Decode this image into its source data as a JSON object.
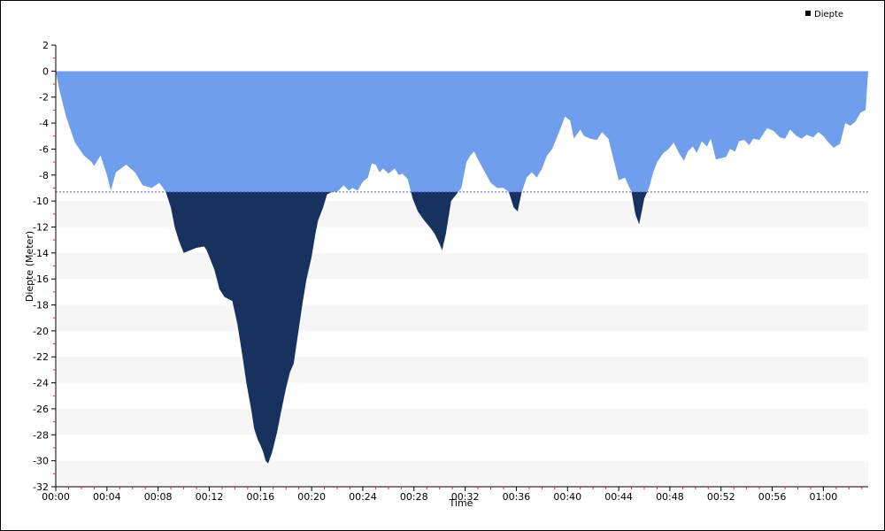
{
  "chart_data": {
    "type": "area",
    "xlabel": "Time",
    "ylabel": "Diepte (Meter)",
    "legend": {
      "label": "Diepte",
      "placement": "top-right"
    },
    "xlim": [
      0,
      63.5
    ],
    "ylim": [
      -32,
      2
    ],
    "x_unit": "minutes",
    "reference_line": -9.3,
    "y_ticks": [
      2,
      0,
      -2,
      -4,
      -6,
      -8,
      -10,
      -12,
      -14,
      -16,
      -18,
      -20,
      -22,
      -24,
      -26,
      -28,
      -30,
      -32
    ],
    "x_ticks": [
      {
        "t": 0,
        "label": "00:00"
      },
      {
        "t": 4,
        "label": "00:04"
      },
      {
        "t": 8,
        "label": "00:08"
      },
      {
        "t": 12,
        "label": "00:12"
      },
      {
        "t": 16,
        "label": "00:16"
      },
      {
        "t": 20,
        "label": "00:20"
      },
      {
        "t": 24,
        "label": "00:24"
      },
      {
        "t": 28,
        "label": "00:28"
      },
      {
        "t": 32,
        "label": "00:32"
      },
      {
        "t": 36,
        "label": "00:36"
      },
      {
        "t": 40,
        "label": "00:40"
      },
      {
        "t": 44,
        "label": "00:44"
      },
      {
        "t": 48,
        "label": "00:48"
      },
      {
        "t": 52,
        "label": "00:52"
      },
      {
        "t": 56,
        "label": "00:56"
      },
      {
        "t": 60,
        "label": "01:00"
      }
    ],
    "colors": {
      "shallow": "#6f9fec",
      "deep": "#17325f",
      "reference": "#5555dd",
      "band": "#f6f6f6"
    },
    "series": [
      {
        "name": "Diepte",
        "points": [
          [
            0,
            0
          ],
          [
            0.3,
            -1.5
          ],
          [
            0.8,
            -3.5
          ],
          [
            1.5,
            -5.5
          ],
          [
            2.2,
            -6.5
          ],
          [
            2.8,
            -7
          ],
          [
            3,
            -7.3
          ],
          [
            3.5,
            -6.5
          ],
          [
            4,
            -8
          ],
          [
            4.3,
            -9.2
          ],
          [
            4.7,
            -7.8
          ],
          [
            5.5,
            -7.2
          ],
          [
            6.2,
            -7.8
          ],
          [
            6.8,
            -8.8
          ],
          [
            7.5,
            -9
          ],
          [
            8.1,
            -8.6
          ],
          [
            8.6,
            -9.3
          ],
          [
            9,
            -10.5
          ],
          [
            9.3,
            -12
          ],
          [
            9.6,
            -13
          ],
          [
            9.8,
            -13.5
          ],
          [
            10,
            -14
          ],
          [
            10.5,
            -13.8
          ],
          [
            11,
            -13.6
          ],
          [
            11.6,
            -13.5
          ],
          [
            11.8,
            -13.8
          ],
          [
            12,
            -14.3
          ],
          [
            12.4,
            -15.3
          ],
          [
            12.8,
            -16.8
          ],
          [
            13.2,
            -17.4
          ],
          [
            13.8,
            -17.7
          ],
          [
            14.2,
            -19.5
          ],
          [
            14.6,
            -22
          ],
          [
            14.9,
            -24
          ],
          [
            15.3,
            -26.2
          ],
          [
            15.5,
            -27.5
          ],
          [
            15.8,
            -28.4
          ],
          [
            16,
            -28.8
          ],
          [
            16.2,
            -29.3
          ],
          [
            16.4,
            -30
          ],
          [
            16.6,
            -30.2
          ],
          [
            16.9,
            -29.4
          ],
          [
            17.3,
            -27.8
          ],
          [
            17.6,
            -26.3
          ],
          [
            18,
            -24.4
          ],
          [
            18.3,
            -23.2
          ],
          [
            18.6,
            -22.5
          ],
          [
            19,
            -19.8
          ],
          [
            19.3,
            -17.8
          ],
          [
            19.6,
            -16
          ],
          [
            20,
            -14.3
          ],
          [
            20.3,
            -12.5
          ],
          [
            20.5,
            -11.5
          ],
          [
            20.9,
            -10.5
          ],
          [
            21.2,
            -9.5
          ],
          [
            21.6,
            -9.3
          ],
          [
            22,
            -9.3
          ],
          [
            22.5,
            -8.8
          ],
          [
            22.9,
            -9.2
          ],
          [
            23.2,
            -9
          ],
          [
            23.6,
            -9.2
          ],
          [
            24,
            -8.5
          ],
          [
            24.4,
            -8.2
          ],
          [
            24.7,
            -7.1
          ],
          [
            25,
            -7.2
          ],
          [
            25.3,
            -7.8
          ],
          [
            25.6,
            -7.5
          ],
          [
            26,
            -7.9
          ],
          [
            26.5,
            -7.5
          ],
          [
            26.8,
            -8
          ],
          [
            27.1,
            -7.9
          ],
          [
            27.5,
            -8.3
          ],
          [
            27.9,
            -9.8
          ],
          [
            28.3,
            -10.8
          ],
          [
            28.8,
            -11.5
          ],
          [
            29.3,
            -12.1
          ],
          [
            29.6,
            -12.5
          ],
          [
            30,
            -13.3
          ],
          [
            30.2,
            -13.8
          ],
          [
            30.5,
            -12.5
          ],
          [
            30.9,
            -10
          ],
          [
            31.3,
            -9.5
          ],
          [
            31.7,
            -9
          ],
          [
            32.1,
            -7
          ],
          [
            32.4,
            -6.5
          ],
          [
            32.7,
            -6.2
          ],
          [
            33,
            -6.8
          ],
          [
            33.5,
            -7.7
          ],
          [
            34,
            -8.6
          ],
          [
            34.5,
            -9
          ],
          [
            35,
            -9
          ],
          [
            35.4,
            -9.3
          ],
          [
            35.8,
            -10.5
          ],
          [
            36.1,
            -10.8
          ],
          [
            36.4,
            -9.4
          ],
          [
            36.8,
            -8.2
          ],
          [
            37.2,
            -7.8
          ],
          [
            37.6,
            -8.2
          ],
          [
            38,
            -7.5
          ],
          [
            38.4,
            -6.5
          ],
          [
            38.8,
            -6
          ],
          [
            39.3,
            -4.8
          ],
          [
            39.8,
            -3.5
          ],
          [
            40.2,
            -3.8
          ],
          [
            40.5,
            -5.2
          ],
          [
            41,
            -4.5
          ],
          [
            41.3,
            -5
          ],
          [
            41.8,
            -5.2
          ],
          [
            42.3,
            -5.3
          ],
          [
            42.7,
            -4.7
          ],
          [
            43.2,
            -5.2
          ],
          [
            43.6,
            -6.8
          ],
          [
            44,
            -8.4
          ],
          [
            44.5,
            -8.2
          ],
          [
            44.8,
            -8.9
          ],
          [
            45,
            -9.3
          ],
          [
            45.3,
            -11
          ],
          [
            45.6,
            -11.8
          ],
          [
            46,
            -9.8
          ],
          [
            46.4,
            -8.9
          ],
          [
            46.7,
            -7.8
          ],
          [
            47,
            -7
          ],
          [
            47.5,
            -6.3
          ],
          [
            47.9,
            -6
          ],
          [
            48.3,
            -5.5
          ],
          [
            48.7,
            -6.3
          ],
          [
            49.1,
            -6.9
          ],
          [
            49.4,
            -6.2
          ],
          [
            49.8,
            -5.8
          ],
          [
            50.1,
            -6.3
          ],
          [
            50.5,
            -5.4
          ],
          [
            50.9,
            -5.8
          ],
          [
            51.2,
            -5.2
          ],
          [
            51.6,
            -6.8
          ],
          [
            52,
            -6.7
          ],
          [
            52.4,
            -6.6
          ],
          [
            52.7,
            -6
          ],
          [
            53.1,
            -6.2
          ],
          [
            53.4,
            -5.4
          ],
          [
            53.8,
            -5.3
          ],
          [
            54.2,
            -5.7
          ],
          [
            54.5,
            -5.2
          ],
          [
            55,
            -5.3
          ],
          [
            55.6,
            -4.4
          ],
          [
            56.1,
            -4.6
          ],
          [
            56.6,
            -5.1
          ],
          [
            57,
            -5.2
          ],
          [
            57.4,
            -4.5
          ],
          [
            57.9,
            -5
          ],
          [
            58.3,
            -5.2
          ],
          [
            58.7,
            -4.9
          ],
          [
            59.2,
            -5.1
          ],
          [
            59.6,
            -4.7
          ],
          [
            60,
            -5
          ],
          [
            60.4,
            -5.5
          ],
          [
            60.8,
            -5.9
          ],
          [
            61.3,
            -5.6
          ],
          [
            61.7,
            -4
          ],
          [
            62.1,
            -4.2
          ],
          [
            62.5,
            -3.9
          ],
          [
            62.9,
            -3.2
          ],
          [
            63.3,
            -3
          ],
          [
            63.5,
            0
          ]
        ]
      }
    ]
  }
}
